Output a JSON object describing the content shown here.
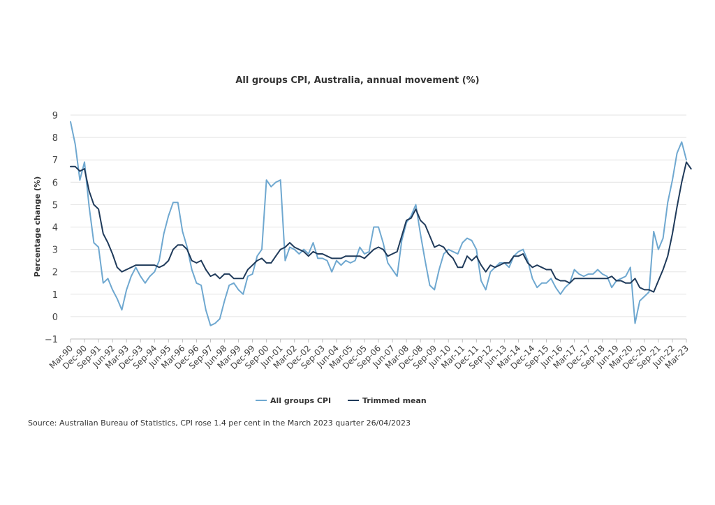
{
  "chart_data": {
    "type": "line",
    "title": "All groups CPI, Australia, annual movement (%)",
    "ylabel": "Percentage change (%)",
    "xlabel": "",
    "ylim": [
      -1,
      9
    ],
    "yticks": [
      -1,
      0,
      1,
      2,
      3,
      4,
      5,
      6,
      7,
      8,
      9
    ],
    "xtick_labels": [
      "Mar-90",
      "Dec-90",
      "Sep-91",
      "Jun-92",
      "Mar-93",
      "Dec-93",
      "Sep-94",
      "Jun-95",
      "Mar-96",
      "Dec-96",
      "Sep-97",
      "Jun-98",
      "Mar-99",
      "Dec-99",
      "Sep-00",
      "Jun-01",
      "Mar-02",
      "Dec-02",
      "Sep-03",
      "Jun-04",
      "Mar-05",
      "Dec-05",
      "Sep-06",
      "Jun-07",
      "Mar-08",
      "Dec-08",
      "Sep-09",
      "Jun-10",
      "Mar-11",
      "Dec-11",
      "Sep-12",
      "Jun-13",
      "Mar-14",
      "Dec-14",
      "Sep-15",
      "Jun-16",
      "Mar-17",
      "Dec-17",
      "Sep-18",
      "Jun-19",
      "Mar-20",
      "Dec-20",
      "Sep-21",
      "Jun-22",
      "Mar-23"
    ],
    "grid": true,
    "legend_position": "bottom",
    "series": [
      {
        "name": "All groups CPI",
        "color": "#6fa8d0",
        "values": [
          8.7,
          7.7,
          6.1,
          6.9,
          4.9,
          3.3,
          3.1,
          1.5,
          1.7,
          1.2,
          0.8,
          0.3,
          1.2,
          1.8,
          2.2,
          1.8,
          1.5,
          1.8,
          2.0,
          2.5,
          3.7,
          4.5,
          5.1,
          5.1,
          3.8,
          3.1,
          2.1,
          1.5,
          1.4,
          0.3,
          -0.4,
          -0.3,
          -0.1,
          0.7,
          1.4,
          1.5,
          1.2,
          1.0,
          1.8,
          1.9,
          2.7,
          3.0,
          6.1,
          5.8,
          6.0,
          6.1,
          2.5,
          3.1,
          3.0,
          2.8,
          3.0,
          2.8,
          3.3,
          2.6,
          2.6,
          2.5,
          2.0,
          2.5,
          2.3,
          2.5,
          2.4,
          2.5,
          3.1,
          2.8,
          2.9,
          4.0,
          4.0,
          3.3,
          2.4,
          2.1,
          1.8,
          3.4,
          4.2,
          4.5,
          5.0,
          3.7,
          2.5,
          1.4,
          1.2,
          2.1,
          2.8,
          3.0,
          2.9,
          2.8,
          3.3,
          3.5,
          3.4,
          3.0,
          1.6,
          1.2,
          2.0,
          2.2,
          2.4,
          2.4,
          2.2,
          2.7,
          2.9,
          3.0,
          2.5,
          1.7,
          1.3,
          1.5,
          1.5,
          1.7,
          1.3,
          1.0,
          1.3,
          1.5,
          2.1,
          1.9,
          1.8,
          1.9,
          1.9,
          2.1,
          1.9,
          1.8,
          1.3,
          1.6,
          1.7,
          1.8,
          2.2,
          -0.3,
          0.7,
          0.9,
          1.1,
          3.8,
          3.0,
          3.5,
          5.1,
          6.1,
          7.3,
          7.8,
          7.0
        ]
      },
      {
        "name": "Trimmed mean",
        "color": "#1f3a5a",
        "values": [
          6.7,
          6.7,
          6.5,
          6.6,
          5.6,
          5.0,
          4.8,
          3.7,
          3.3,
          2.8,
          2.2,
          2.0,
          2.1,
          2.2,
          2.3,
          2.3,
          2.3,
          2.3,
          2.3,
          2.2,
          2.3,
          2.5,
          3.0,
          3.2,
          3.2,
          3.0,
          2.5,
          2.4,
          2.5,
          2.1,
          1.8,
          1.9,
          1.7,
          1.9,
          1.9,
          1.7,
          1.7,
          1.7,
          2.1,
          2.3,
          2.5,
          2.6,
          2.4,
          2.4,
          2.7,
          3.0,
          3.1,
          3.3,
          3.1,
          3.0,
          2.9,
          2.7,
          2.9,
          2.8,
          2.8,
          2.7,
          2.6,
          2.6,
          2.6,
          2.7,
          2.7,
          2.7,
          2.7,
          2.6,
          2.8,
          3.0,
          3.1,
          3.0,
          2.7,
          2.8,
          2.9,
          3.6,
          4.3,
          4.4,
          4.8,
          4.3,
          4.1,
          3.6,
          3.1,
          3.2,
          3.1,
          2.8,
          2.6,
          2.2,
          2.2,
          2.7,
          2.5,
          2.7,
          2.3,
          2.0,
          2.3,
          2.2,
          2.3,
          2.4,
          2.4,
          2.7,
          2.7,
          2.8,
          2.4,
          2.2,
          2.3,
          2.2,
          2.1,
          2.1,
          1.7,
          1.6,
          1.6,
          1.5,
          1.7,
          1.7,
          1.7,
          1.7,
          1.7,
          1.7,
          1.7,
          1.7,
          1.8,
          1.6,
          1.6,
          1.5,
          1.5,
          1.7,
          1.3,
          1.2,
          1.2,
          1.1,
          1.6,
          2.1,
          2.7,
          3.7,
          4.9,
          6.0,
          6.9,
          6.6
        ]
      }
    ]
  },
  "source_text": "Source: Australian Bureau of Statistics, CPI rose 1.4 per cent in the March 2023 quarter 26/04/2023"
}
